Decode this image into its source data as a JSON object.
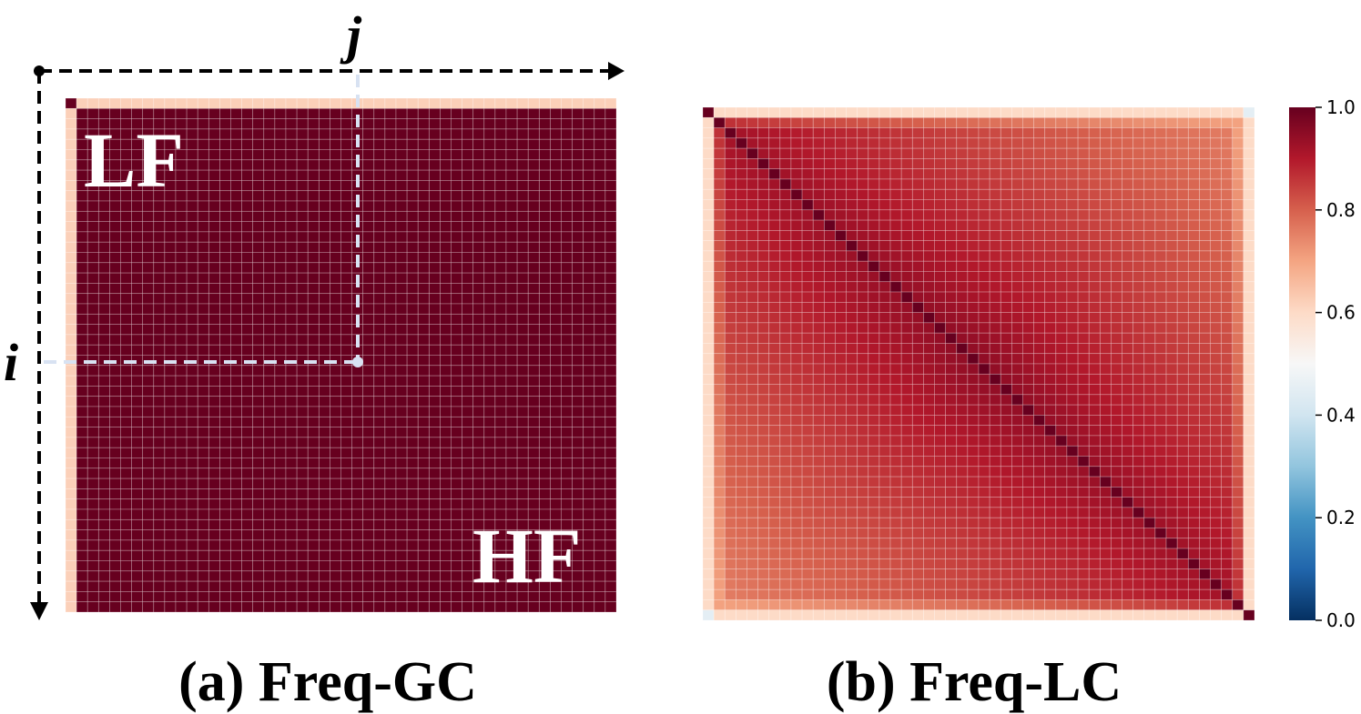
{
  "panel_a": {
    "caption": "(a) Freq-GC",
    "axis_i": "i",
    "axis_j": "j",
    "label_lf": "LF",
    "label_hf": "HF"
  },
  "panel_b": {
    "caption": "(b) Freq-LC"
  },
  "colors": {
    "dark_red": "#67001f",
    "guide_line": "#d8e2f2",
    "axis_arrow": "#000000"
  },
  "chart_data": [
    {
      "type": "heatmap",
      "panel": "a",
      "title": "",
      "n": 50,
      "grid": true,
      "description_of_values": "first row and first column ~0.6, corner cell and all other cells ~1.0",
      "value_rule": {
        "edge": 0.62,
        "corner": 1.0,
        "interior": 1.0
      },
      "annotations": [
        "LF",
        "HF",
        "i",
        "j"
      ],
      "colormap": "RdBu_r",
      "vmin": 0.0,
      "vmax": 1.0
    },
    {
      "type": "heatmap",
      "panel": "b",
      "title": "",
      "n": 50,
      "grid": true,
      "value_rule": {
        "diagonal": 1.0,
        "near_diag": 0.92,
        "far_offdiag": 0.72,
        "border_row_col": 0.6,
        "corner_offdiag": 0.45
      },
      "colormap": "RdBu_r",
      "colorbar": {
        "ticks": [
          0.0,
          0.2,
          0.4,
          0.6,
          0.8,
          1.0
        ],
        "tick_labels": [
          "0.0",
          "0.2",
          "0.4",
          "0.6",
          "0.8",
          "1.0"
        ],
        "range": [
          0.0,
          1.0
        ],
        "placement": "right"
      }
    }
  ]
}
